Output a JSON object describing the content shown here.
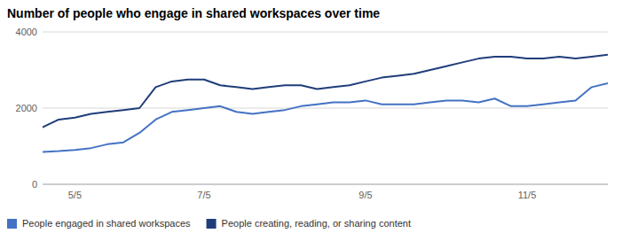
{
  "chart_data": {
    "type": "line",
    "title": "Number of people who engage in shared workspaces over time",
    "x": [
      0,
      1,
      2,
      3,
      4,
      5,
      6,
      7,
      8,
      9,
      10,
      11,
      12,
      13,
      14,
      15,
      16,
      17,
      18,
      19,
      20,
      21,
      22,
      23,
      24,
      25,
      26,
      27,
      28,
      29,
      30,
      31,
      32,
      33,
      34,
      35
    ],
    "series": [
      {
        "name": "People engaged in shared workspaces",
        "color": "#4472C4",
        "values": [
          850,
          870,
          900,
          950,
          1050,
          1100,
          1350,
          1700,
          1900,
          1950,
          2000,
          2050,
          1900,
          1850,
          1900,
          1950,
          2050,
          2100,
          2150,
          2150,
          2200,
          2100,
          2100,
          2100,
          2150,
          2200,
          2200,
          2150,
          2250,
          2050,
          2050,
          2100,
          2150,
          2200,
          2550,
          2650
        ]
      },
      {
        "name": "People creating, reading, or sharing content",
        "color": "#1F3D7A",
        "values": [
          1500,
          1700,
          1750,
          1850,
          1900,
          1950,
          2000,
          2550,
          2700,
          2750,
          2750,
          2600,
          2550,
          2500,
          2550,
          2600,
          2600,
          2500,
          2550,
          2600,
          2700,
          2800,
          2850,
          2900,
          3000,
          3100,
          3200,
          3300,
          3350,
          3350,
          3300,
          3300,
          3350,
          3300,
          3350,
          3400
        ]
      }
    ],
    "xlim": [
      0,
      35
    ],
    "xticks": [
      {
        "value": 2,
        "label": "5/5"
      },
      {
        "value": 10,
        "label": "7/5"
      },
      {
        "value": 20,
        "label": "9/5"
      },
      {
        "value": 30,
        "label": "11/5"
      }
    ],
    "ylim": [
      0,
      4000
    ],
    "yticks": [
      0,
      2000,
      4000
    ],
    "grid": true,
    "legend": "bottom"
  }
}
